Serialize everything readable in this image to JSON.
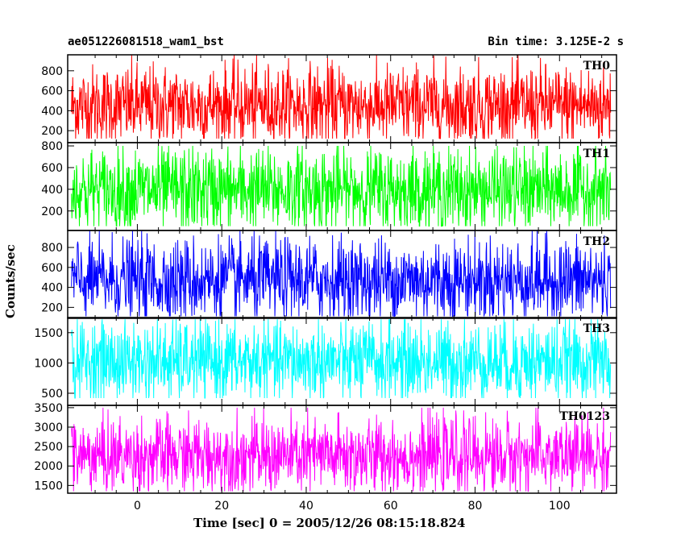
{
  "header": {
    "left_title": "ae051226081518_wam1_bst",
    "right_title": "Bin time: 3.125E-2 s"
  },
  "chart_data": {
    "type": "line",
    "xlabel": "Time [sec] 0 = 2005/12/26 08:15:18.824",
    "ylabel": "Counts/sec",
    "xlim": [
      -16.5,
      113.5
    ],
    "x_range": [
      -15.6,
      112.1
    ],
    "x_ticks": [
      0,
      20,
      40,
      60,
      80,
      100
    ],
    "panels": [
      {
        "name": "TH0",
        "color": "#ff0000",
        "ylim": [
          80,
          960
        ],
        "y_ticks": [
          200,
          400,
          600,
          800
        ],
        "mean": 450,
        "band": [
          250,
          700
        ],
        "extremes": [
          120,
          960
        ]
      },
      {
        "name": "TH1",
        "color": "#00ff00",
        "ylim": [
          20,
          830
        ],
        "y_ticks": [
          200,
          400,
          600,
          800
        ],
        "mean": 390,
        "band": [
          180,
          620
        ],
        "extremes": [
          60,
          800
        ]
      },
      {
        "name": "TH2",
        "color": "#0000ff",
        "ylim": [
          90,
          970
        ],
        "y_ticks": [
          200,
          400,
          600,
          800
        ],
        "mean": 470,
        "band": [
          250,
          720
        ],
        "extremes": [
          110,
          970
        ]
      },
      {
        "name": "TH3",
        "color": "#00ffff",
        "ylim": [
          300,
          1750
        ],
        "y_ticks": [
          500,
          1000,
          1500
        ],
        "mean": 1020,
        "band": [
          650,
          1400
        ],
        "extremes": [
          420,
          1720
        ]
      },
      {
        "name": "TH0123",
        "color": "#ff00ff",
        "ylim": [
          1300,
          3560
        ],
        "y_ticks": [
          1500,
          2000,
          2500,
          3000,
          3500
        ],
        "mean": 2250,
        "band": [
          1700,
          2800
        ],
        "extremes": [
          1350,
          3500
        ]
      }
    ]
  }
}
